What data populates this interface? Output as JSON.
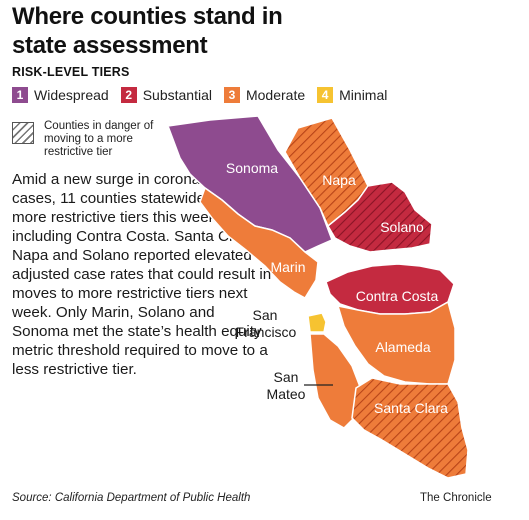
{
  "title": "Where counties stand in state assessment",
  "subtitle": "RISK-LEVEL TIERS",
  "legend": [
    {
      "num": "1",
      "label": "Widespread",
      "color": "#8e4b8f"
    },
    {
      "num": "2",
      "label": "Substantial",
      "color": "#c42a40"
    },
    {
      "num": "3",
      "label": "Moderate",
      "color": "#ee7c3a"
    },
    {
      "num": "4",
      "label": "Minimal",
      "color": "#f6c331"
    }
  ],
  "hatch_legend": "Counties in danger of moving to a more restrictive tier",
  "body_text": "Amid a new surge in coronavirus cases, 11 counties statewide moved to more restrictive tiers this week, including Contra Costa. Santa Clara, Napa and Solano reported elevated adjusted case rates that could result in moves to more restrictive tiers next week. Only Marin, Solano and Sonoma met the state’s health equity metric threshold required to move to a less restrictive tier.",
  "counties": {
    "sonoma": {
      "name": "Sonoma",
      "tier": 1,
      "hatched": false
    },
    "napa": {
      "name": "Napa",
      "tier": 3,
      "hatched": true
    },
    "solano": {
      "name": "Solano",
      "tier": 2,
      "hatched": true
    },
    "marin": {
      "name": "Marin",
      "tier": 3,
      "hatched": false
    },
    "contra_costa": {
      "name": "Contra Costa",
      "tier": 2,
      "hatched": false
    },
    "san_francisco": {
      "name": "San Francisco",
      "tier": 4,
      "hatched": false
    },
    "alameda": {
      "name": "Alameda",
      "tier": 3,
      "hatched": false
    },
    "san_mateo": {
      "name": "San Mateo",
      "tier": 3,
      "hatched": false
    },
    "santa_clara": {
      "name": "Santa Clara",
      "tier": 3,
      "hatched": true
    }
  },
  "source": "Source: California Department of Public Health",
  "credit": "The Chronicle"
}
